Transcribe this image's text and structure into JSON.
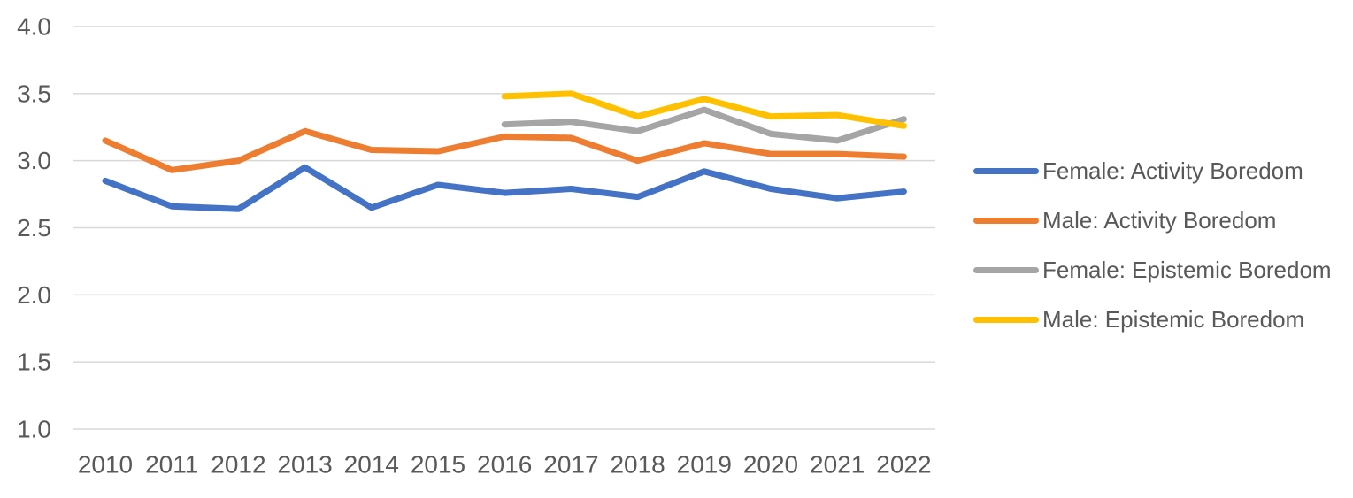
{
  "chart_data": {
    "type": "line",
    "title": "",
    "xlabel": "",
    "ylabel": "",
    "categories": [
      "2010",
      "2011",
      "2012",
      "2013",
      "2014",
      "2015",
      "2016",
      "2017",
      "2018",
      "2019",
      "2020",
      "2021",
      "2022"
    ],
    "series": [
      {
        "name": "Female: Activity Boredom",
        "color": "#4472C4",
        "values": [
          2.85,
          2.66,
          2.64,
          2.95,
          2.65,
          2.82,
          2.76,
          2.79,
          2.73,
          2.92,
          2.79,
          2.72,
          2.77
        ]
      },
      {
        "name": "Male: Activity Boredom",
        "color": "#ED7D31",
        "values": [
          3.15,
          2.93,
          3.0,
          3.22,
          3.08,
          3.07,
          3.18,
          3.17,
          3.0,
          3.13,
          3.05,
          3.05,
          3.03
        ]
      },
      {
        "name": "Female: Epistemic Boredom",
        "color": "#A5A5A5",
        "values": [
          null,
          null,
          null,
          null,
          null,
          null,
          3.27,
          3.29,
          3.22,
          3.38,
          3.2,
          3.15,
          3.31
        ]
      },
      {
        "name": "Male: Epistemic Boredom",
        "color": "#FFC000",
        "values": [
          null,
          null,
          null,
          null,
          null,
          null,
          3.48,
          3.5,
          3.33,
          3.46,
          3.33,
          3.34,
          3.26
        ]
      }
    ],
    "y_axis": {
      "tick_labels": [
        "4.0",
        "3.5",
        "3.0",
        "2.5",
        "2.0",
        "1.5",
        "1.0"
      ],
      "tick_values": [
        4.0,
        3.5,
        3.0,
        2.5,
        2.0,
        1.5,
        1.0
      ],
      "min": 1.0,
      "max": 4.0
    },
    "x_axis": {
      "tick_labels": [
        "2010",
        "2011",
        "2012",
        "2013",
        "2014",
        "2015",
        "2016",
        "2017",
        "2018",
        "2019",
        "2020",
        "2021",
        "2022"
      ]
    },
    "grid": true,
    "legend_position": "right",
    "styles": {
      "gridline_color": "#D9D9D9",
      "axis_label_color": "#595959",
      "background": "#FFFFFF"
    }
  }
}
